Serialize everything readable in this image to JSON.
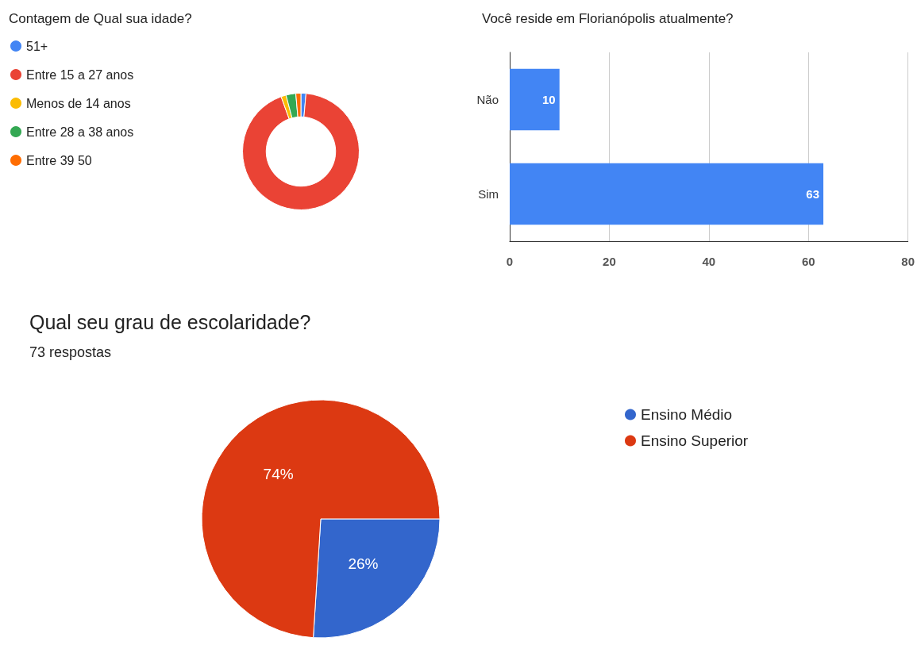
{
  "chart_data": [
    {
      "type": "donut",
      "title": "Contagem de Qual sua idade?",
      "categories": [
        "51+",
        "Entre 15 a 27 anos",
        "Menos de 14 anos",
        "Entre 28 a 38 anos",
        "Entre 39 50"
      ],
      "values": [
        1.4,
        93.1,
        1.4,
        2.7,
        1.4
      ],
      "colors": [
        "#4285f4",
        "#ea4335",
        "#fbbc04",
        "#34a853",
        "#ff6d01"
      ],
      "legend": "top left"
    },
    {
      "type": "bar",
      "title": "Você reside em Florianópolis atualmente?",
      "orientation": "horizontal",
      "categories": [
        "Não",
        "Sim"
      ],
      "values": [
        10,
        63
      ],
      "color": "#4285f4",
      "xlim": [
        0,
        80
      ],
      "xticks": [
        0,
        20,
        40,
        60,
        80
      ],
      "grid": "x",
      "data_labels": true
    },
    {
      "type": "pie",
      "title": "Qual seu grau de escolaridade?",
      "subtitle": "73 respostas",
      "categories": [
        "Ensino Médio",
        "Ensino Superior"
      ],
      "values": [
        26,
        74
      ],
      "colors": [
        "#3366cc",
        "#dc3912"
      ],
      "value_labels": [
        "26%",
        "74%"
      ],
      "legend": "top right"
    }
  ]
}
